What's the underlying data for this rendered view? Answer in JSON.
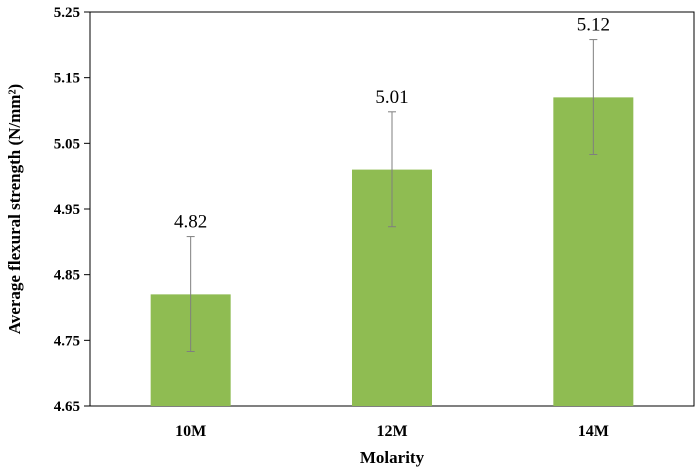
{
  "chart_data": {
    "type": "bar",
    "categories": [
      "10M",
      "12M",
      "14M"
    ],
    "values": [
      4.82,
      5.01,
      5.12
    ],
    "error_low": [
      4.733,
      4.923,
      5.033
    ],
    "error_high": [
      4.908,
      5.098,
      5.208
    ],
    "data_labels": [
      "4.82",
      "5.01",
      "5.12"
    ],
    "xlabel": "Molarity",
    "ylabel": "Average flexural strength (N/mm²)",
    "ylim": [
      4.65,
      5.25
    ],
    "yticks": [
      4.65,
      4.75,
      4.85,
      4.95,
      5.05,
      5.15,
      5.25
    ],
    "ytick_labels": [
      "4.65",
      "4.75",
      "4.85",
      "4.95",
      "5.05",
      "5.15",
      "5.25"
    ],
    "bar_color": "#8fbc52",
    "error_bar_color": "#7f7f7f",
    "grid": false,
    "legend": "none"
  }
}
